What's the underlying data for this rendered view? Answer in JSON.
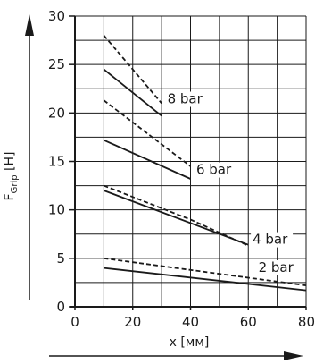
{
  "chart_data": {
    "type": "line",
    "title": "",
    "xlabel": "x [мм]",
    "ylabel_main": "F",
    "ylabel_sub": "Grip",
    "ylabel_unit": " [H]",
    "xlim": [
      0,
      80
    ],
    "ylim": [
      0,
      30
    ],
    "x_ticks": [
      "0",
      "20",
      "40",
      "60",
      "80"
    ],
    "y_ticks": [
      "0",
      "5",
      "10",
      "15",
      "20",
      "25",
      "30"
    ],
    "grid": true,
    "series": [
      {
        "name": "8 bar",
        "style": "solid",
        "x": [
          10,
          30
        ],
        "y": [
          24.5,
          19.7
        ]
      },
      {
        "name": "8 bar",
        "style": "dashed",
        "x": [
          10,
          30
        ],
        "y": [
          28.0,
          21.0
        ]
      },
      {
        "name": "6 bar",
        "style": "solid",
        "x": [
          10,
          40
        ],
        "y": [
          17.2,
          13.2
        ]
      },
      {
        "name": "6 bar",
        "style": "dashed",
        "x": [
          10,
          40
        ],
        "y": [
          21.3,
          14.5
        ]
      },
      {
        "name": "4 bar",
        "style": "solid",
        "x": [
          10,
          60
        ],
        "y": [
          12.0,
          6.4
        ]
      },
      {
        "name": "4 bar",
        "style": "dashed",
        "x": [
          10,
          40,
          60
        ],
        "y": [
          12.5,
          9.0,
          6.3
        ]
      },
      {
        "name": "2 bar",
        "style": "solid",
        "x": [
          10,
          80
        ],
        "y": [
          4.0,
          1.7
        ]
      },
      {
        "name": "2 bar",
        "style": "dashed",
        "x": [
          10,
          80
        ],
        "y": [
          5.0,
          2.2
        ]
      }
    ],
    "curve_labels": [
      {
        "text": "8 bar",
        "x": 32,
        "y": 21.0
      },
      {
        "text": "6 bar",
        "x": 42,
        "y": 13.7
      },
      {
        "text": "4 bar",
        "x": 61.5,
        "y": 6.5
      },
      {
        "text": "2 bar",
        "x": 63.5,
        "y": 3.6
      }
    ],
    "colors": {
      "line": "#1a1a1a",
      "grid": "#1a1a1a",
      "background": "#ffffff"
    }
  }
}
